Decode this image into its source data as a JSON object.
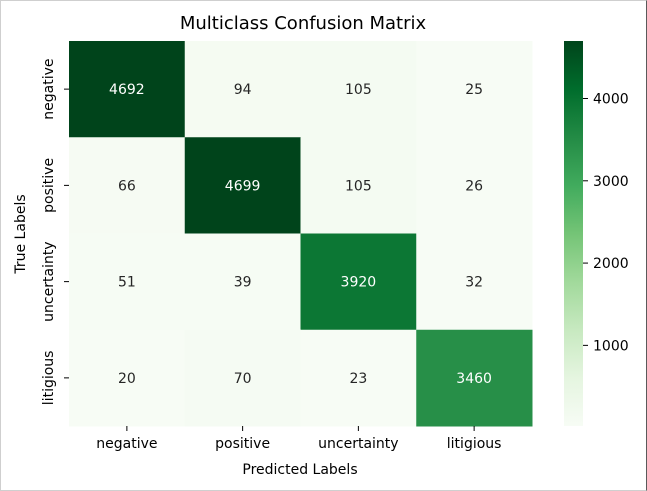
{
  "chart_data": {
    "type": "heatmap",
    "title": "Multiclass Confusion Matrix",
    "xlabel": "Predicted Labels",
    "ylabel": "True Labels",
    "x_categories": [
      "negative",
      "positive",
      "uncertainty",
      "litigious"
    ],
    "y_categories": [
      "negative",
      "positive",
      "uncertainty",
      "litigious"
    ],
    "values": [
      [
        4692,
        94,
        105,
        25
      ],
      [
        66,
        4699,
        105,
        26
      ],
      [
        51,
        39,
        3920,
        32
      ],
      [
        20,
        70,
        23,
        3460
      ]
    ],
    "colorbar": {
      "colormap": "Greens",
      "vmin": 20,
      "vmax": 4699,
      "ticks": [
        1000,
        2000,
        3000,
        4000
      ]
    },
    "annotations": true
  }
}
